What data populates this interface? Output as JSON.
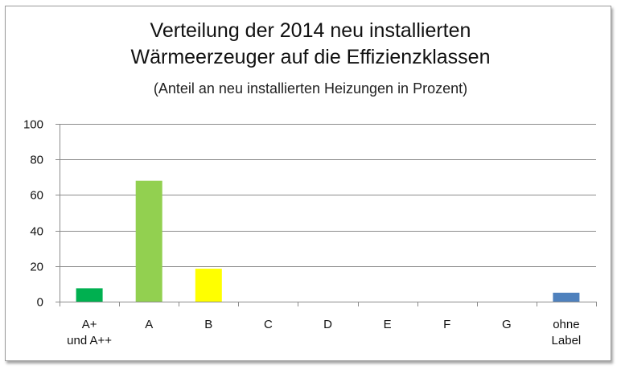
{
  "chart_data": {
    "type": "bar",
    "title_lines": [
      "Verteilung der 2014 neu installierten",
      "Wärmeerzeuger auf die Effizienzklassen"
    ],
    "subtitle": "(Anteil an neu installierten Heizungen in Prozent)",
    "xlabel": "",
    "ylabel": "",
    "ylim": [
      0,
      100
    ],
    "yticks": [
      0,
      20,
      40,
      60,
      80,
      100
    ],
    "grid": true,
    "legend": "none",
    "categories": [
      [
        "A+",
        "und A++"
      ],
      [
        "A"
      ],
      [
        "B"
      ],
      [
        "C"
      ],
      [
        "D"
      ],
      [
        "E"
      ],
      [
        "F"
      ],
      [
        "G"
      ],
      [
        "ohne",
        "Label"
      ]
    ],
    "values": [
      7.5,
      68,
      18.5,
      0,
      0,
      0,
      0,
      0,
      5
    ],
    "colors": [
      "#00b050",
      "#92d050",
      "#ffff00",
      "#92d050",
      "#92d050",
      "#92d050",
      "#92d050",
      "#92d050",
      "#4f81bd"
    ]
  }
}
